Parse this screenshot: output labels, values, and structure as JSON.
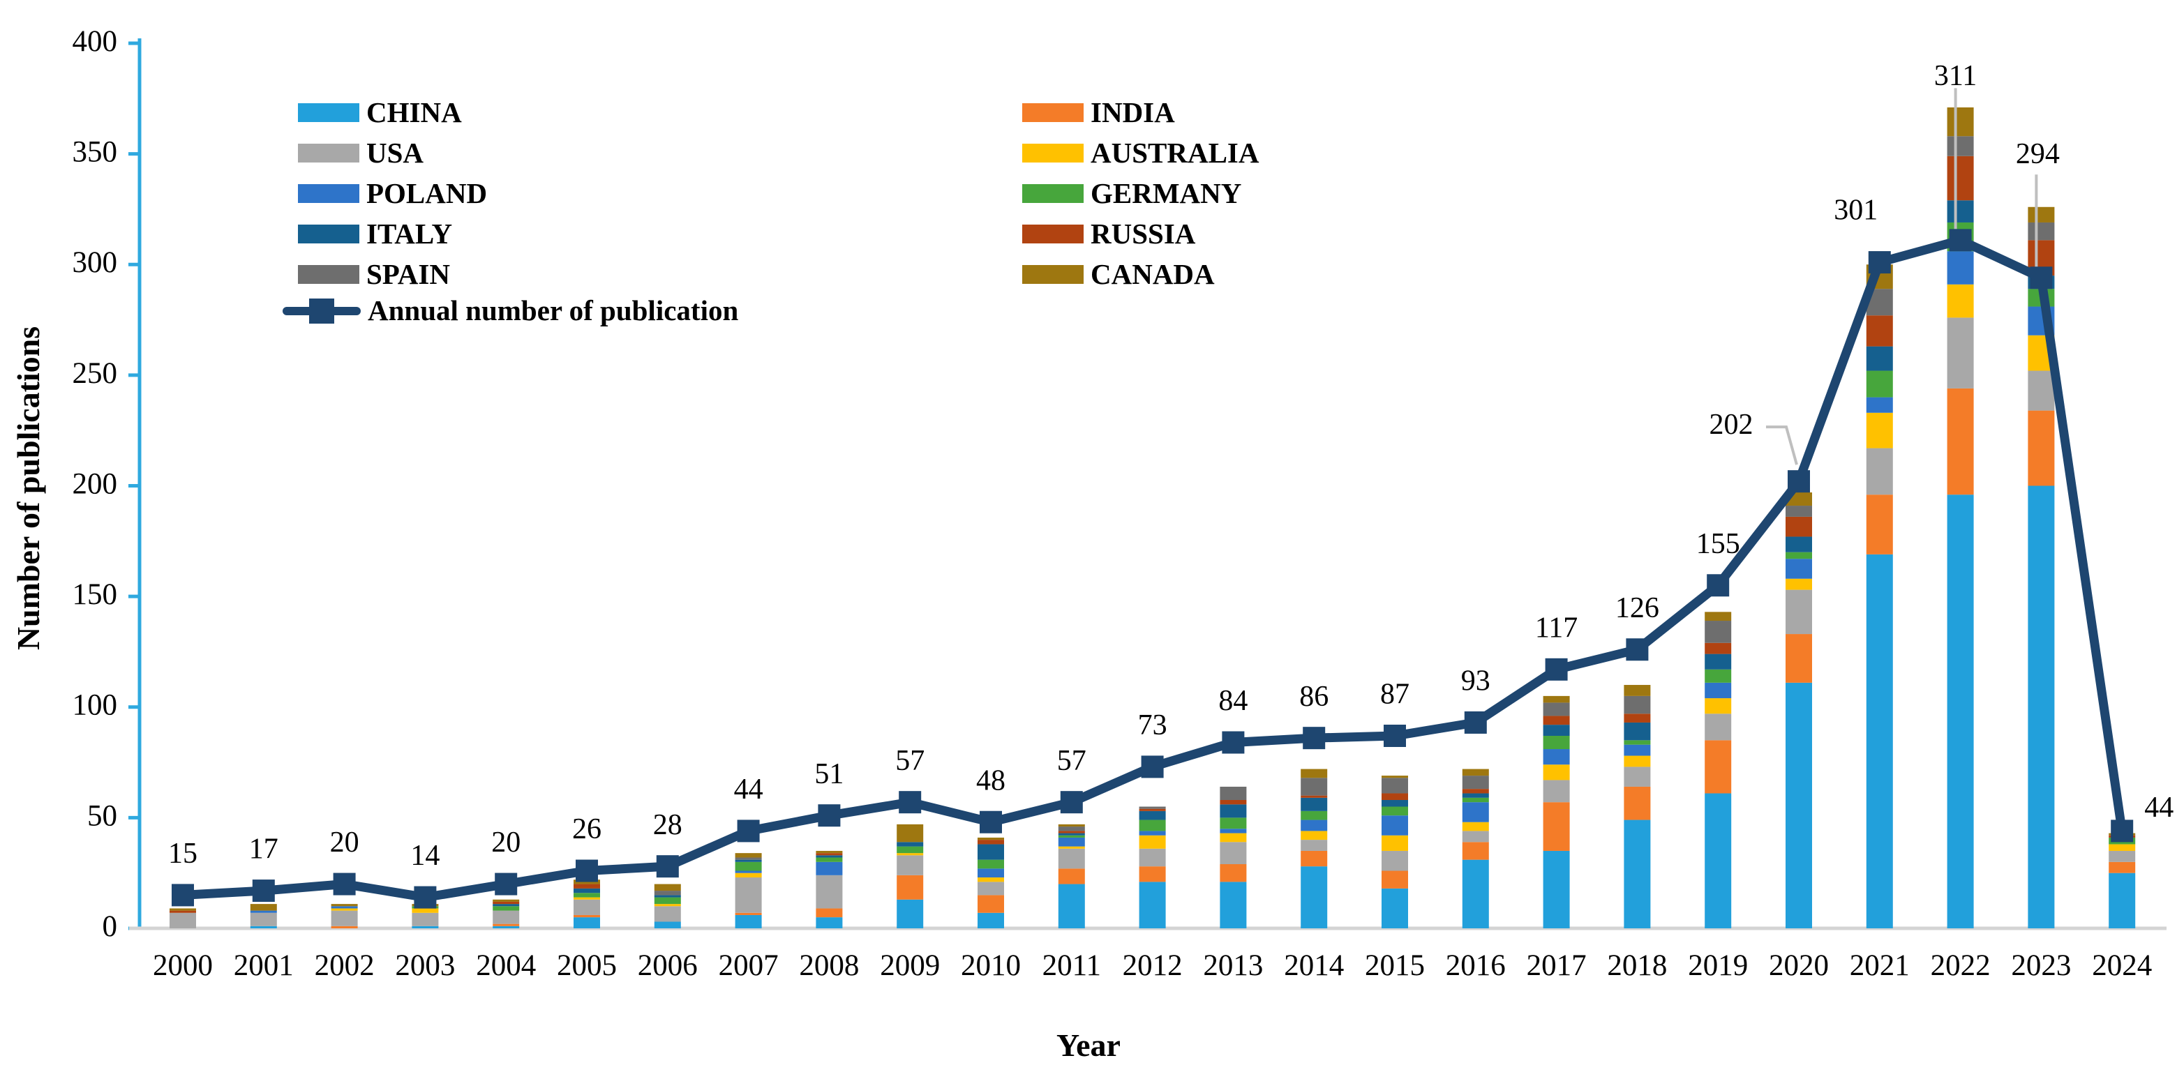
{
  "chart_data": {
    "type": "bar",
    "subtype": "stacked-bars-with-line",
    "title": "",
    "xlabel": "Year",
    "ylabel": "Number of publications",
    "ylim": [
      0,
      400
    ],
    "ytick_step": 50,
    "grid": false,
    "legend_position": "top-left-inside",
    "categories": [
      "2000",
      "2001",
      "2002",
      "2003",
      "2004",
      "2005",
      "2006",
      "2007",
      "2008",
      "2009",
      "2010",
      "2011",
      "2012",
      "2013",
      "2014",
      "2015",
      "2016",
      "2017",
      "2018",
      "2019",
      "2020",
      "2021",
      "2022",
      "2023",
      "2024"
    ],
    "series": [
      {
        "name": "CHINA",
        "color": "#22A0DB",
        "values": [
          0,
          1,
          0,
          1,
          1,
          5,
          3,
          6,
          5,
          13,
          7,
          20,
          21,
          21,
          28,
          18,
          31,
          35,
          49,
          61,
          111,
          169,
          196,
          200,
          25
        ]
      },
      {
        "name": "INDIA",
        "color": "#F47C28",
        "values": [
          0,
          0,
          1,
          0,
          1,
          1,
          0,
          1,
          4,
          11,
          8,
          7,
          7,
          8,
          7,
          8,
          8,
          22,
          15,
          24,
          22,
          27,
          48,
          34,
          5
        ]
      },
      {
        "name": "USA",
        "color": "#A8A8A8",
        "values": [
          7,
          6,
          7,
          6,
          6,
          7,
          7,
          16,
          15,
          9,
          6,
          9,
          8,
          10,
          5,
          9,
          5,
          10,
          9,
          12,
          20,
          21,
          32,
          18,
          5
        ]
      },
      {
        "name": "AUSTRALIA",
        "color": "#FFC100",
        "values": [
          0,
          0,
          1,
          2,
          0,
          1,
          1,
          2,
          0,
          1,
          2,
          1,
          6,
          4,
          4,
          7,
          4,
          7,
          5,
          7,
          5,
          16,
          15,
          16,
          3
        ]
      },
      {
        "name": "POLAND",
        "color": "#2E74C9",
        "values": [
          0,
          1,
          1,
          0,
          0,
          0,
          0,
          1,
          6,
          0,
          4,
          4,
          2,
          2,
          5,
          9,
          9,
          7,
          5,
          7,
          9,
          7,
          15,
          13,
          0
        ]
      },
      {
        "name": "GERMANY",
        "color": "#47A63C",
        "values": [
          0,
          0,
          0,
          1,
          2,
          2,
          3,
          4,
          2,
          3,
          4,
          1,
          5,
          5,
          4,
          4,
          2,
          6,
          2,
          6,
          3,
          12,
          13,
          8,
          3
        ]
      },
      {
        "name": "ITALY",
        "color": "#15608F",
        "values": [
          0,
          0,
          0,
          0,
          1,
          2,
          1,
          1,
          1,
          2,
          7,
          1,
          4,
          6,
          6,
          3,
          2,
          5,
          8,
          7,
          7,
          11,
          10,
          6,
          0
        ]
      },
      {
        "name": "RUSSIA",
        "color": "#B14311",
        "values": [
          1,
          0,
          0,
          0,
          1,
          2,
          0,
          0,
          1,
          0,
          2,
          1,
          1,
          2,
          1,
          3,
          2,
          4,
          4,
          5,
          9,
          14,
          20,
          16,
          1
        ]
      },
      {
        "name": "SPAIN",
        "color": "#6E6E6E",
        "values": [
          0,
          0,
          0,
          0,
          0,
          0,
          2,
          1,
          0,
          0,
          0,
          2,
          1,
          6,
          8,
          7,
          6,
          6,
          8,
          10,
          5,
          12,
          9,
          8,
          0
        ]
      },
      {
        "name": "CANADA",
        "color": "#9E7710",
        "values": [
          1,
          3,
          1,
          1,
          1,
          2,
          3,
          2,
          1,
          8,
          1,
          1,
          0,
          0,
          4,
          1,
          3,
          3,
          5,
          4,
          6,
          11,
          13,
          7,
          1
        ]
      }
    ],
    "line": {
      "name": "Annual number of publication",
      "color": "#1E4670",
      "marker": "square",
      "values": [
        15,
        17,
        20,
        14,
        20,
        26,
        28,
        44,
        51,
        57,
        48,
        57,
        73,
        84,
        86,
        87,
        93,
        117,
        126,
        155,
        202,
        301,
        311,
        294,
        44
      ]
    },
    "point_labels": [
      "15",
      "17",
      "20",
      "14",
      "20",
      "26",
      "28",
      "44",
      "51",
      "57",
      "48",
      "57",
      "73",
      "84",
      "86",
      "87",
      "93",
      "117",
      "126",
      "155",
      "202",
      "301",
      "311",
      "294",
      "44"
    ],
    "ytick_labels": [
      "0",
      "50",
      "100",
      "150",
      "200",
      "250",
      "300",
      "350",
      "400"
    ],
    "axis_colors": {
      "y_axis": "#2FA9DF",
      "x_axis": "#D4D4D4",
      "leader_line": "#BFBFBF",
      "text": "#000000"
    }
  }
}
